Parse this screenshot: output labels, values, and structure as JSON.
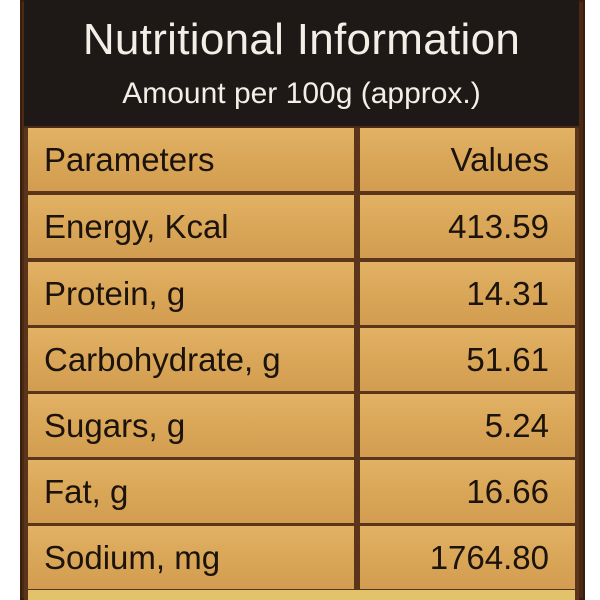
{
  "header": {
    "title": "Nutritional Information",
    "subtitle": "Amount per 100g (approx.)"
  },
  "table": {
    "columns": [
      "Parameters",
      "Values"
    ],
    "rows": [
      {
        "parameter": "Energy, Kcal",
        "value": "413.59"
      },
      {
        "parameter": "Protein, g",
        "value": "14.31"
      },
      {
        "parameter": "Carbohydrate, g",
        "value": "51.61"
      },
      {
        "parameter": "Sugars, g",
        "value": "5.24"
      },
      {
        "parameter": "Fat, g",
        "value": "16.66"
      },
      {
        "parameter": "Sodium, mg",
        "value": "1764.80"
      }
    ]
  },
  "colors": {
    "header_bg": "#1e1817",
    "cell_bg": "#dba85a",
    "border": "#5a351b"
  }
}
